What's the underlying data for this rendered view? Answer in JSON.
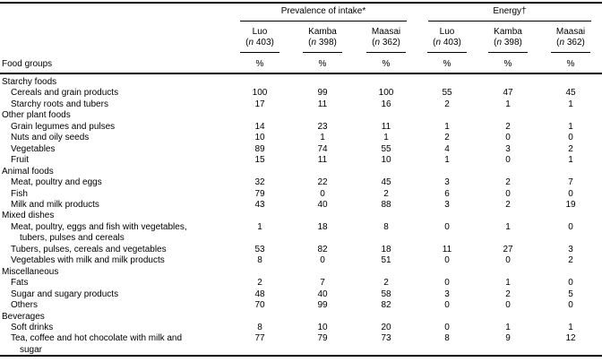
{
  "colors": {
    "text": "#000000",
    "background": "#ffffff",
    "rule": "#000000"
  },
  "table": {
    "col_header_left": "Food groups",
    "groups": [
      {
        "label": "Prevalence of intake*"
      },
      {
        "label": "Energy†"
      }
    ],
    "columns": [
      {
        "name": "Luo",
        "n": "(n 403)"
      },
      {
        "name": "Kamba",
        "n": "(n 398)"
      },
      {
        "name": "Maasai",
        "n": "(n 362)"
      },
      {
        "name": "Luo",
        "n": "(n 403)"
      },
      {
        "name": "Kamba",
        "n": "(n 398)"
      },
      {
        "name": "Maasai",
        "n": "(n 362)"
      }
    ],
    "unit_row": [
      "%",
      "%",
      "%",
      "%",
      "%",
      "%"
    ],
    "rows": [
      {
        "label": "Starchy foods",
        "indent": 0,
        "values": null
      },
      {
        "label": "Cereals and grain products",
        "indent": 1,
        "values": [
          "100",
          "99",
          "100",
          "55",
          "47",
          "45"
        ]
      },
      {
        "label": "Starchy roots and tubers",
        "indent": 1,
        "values": [
          "17",
          "11",
          "16",
          "2",
          "1",
          "1"
        ]
      },
      {
        "label": "Other plant foods",
        "indent": 0,
        "values": null
      },
      {
        "label": "Grain legumes and pulses",
        "indent": 1,
        "values": [
          "14",
          "23",
          "11",
          "1",
          "2",
          "1"
        ]
      },
      {
        "label": "Nuts and oily seeds",
        "indent": 1,
        "values": [
          "10",
          "1",
          "1",
          "2",
          "0",
          "0"
        ]
      },
      {
        "label": "Vegetables",
        "indent": 1,
        "values": [
          "89",
          "74",
          "55",
          "4",
          "3",
          "2"
        ]
      },
      {
        "label": "Fruit",
        "indent": 1,
        "values": [
          "15",
          "11",
          "10",
          "1",
          "0",
          "1"
        ]
      },
      {
        "label": "Animal foods",
        "indent": 0,
        "values": null
      },
      {
        "label": "Meat, poultry and eggs",
        "indent": 1,
        "values": [
          "32",
          "22",
          "45",
          "3",
          "2",
          "7"
        ]
      },
      {
        "label": "Fish",
        "indent": 1,
        "values": [
          "79",
          "0",
          "2",
          "6",
          "0",
          "0"
        ]
      },
      {
        "label": "Milk and milk products",
        "indent": 1,
        "values": [
          "43",
          "40",
          "88",
          "3",
          "2",
          "19"
        ]
      },
      {
        "label": "Mixed dishes",
        "indent": 0,
        "values": null
      },
      {
        "label": "Meat, poultry, eggs and fish with vegetables,",
        "label2": "tubers, pulses and cereals",
        "indent": 1,
        "values": [
          "1",
          "18",
          "8",
          "0",
          "1",
          "0"
        ]
      },
      {
        "label": "Tubers, pulses, cereals and vegetables",
        "indent": 1,
        "values": [
          "53",
          "82",
          "18",
          "11",
          "27",
          "3"
        ]
      },
      {
        "label": "Vegetables with milk and milk products",
        "indent": 1,
        "values": [
          "8",
          "0",
          "51",
          "0",
          "0",
          "2"
        ]
      },
      {
        "label": "Miscellaneous",
        "indent": 0,
        "values": null
      },
      {
        "label": "Fats",
        "indent": 1,
        "values": [
          "2",
          "7",
          "2",
          "0",
          "1",
          "0"
        ]
      },
      {
        "label": "Sugar and sugary products",
        "indent": 1,
        "values": [
          "48",
          "40",
          "58",
          "3",
          "2",
          "5"
        ]
      },
      {
        "label": "Others",
        "indent": 1,
        "values": [
          "70",
          "99",
          "82",
          "0",
          "0",
          "0"
        ]
      },
      {
        "label": "Beverages",
        "indent": 0,
        "values": null
      },
      {
        "label": "Soft drinks",
        "indent": 1,
        "values": [
          "8",
          "10",
          "20",
          "0",
          "1",
          "1"
        ]
      },
      {
        "label": "Tea, coffee and hot chocolate with milk and",
        "label2": "sugar",
        "indent": 1,
        "values": [
          "77",
          "79",
          "73",
          "8",
          "9",
          "12"
        ]
      }
    ]
  }
}
